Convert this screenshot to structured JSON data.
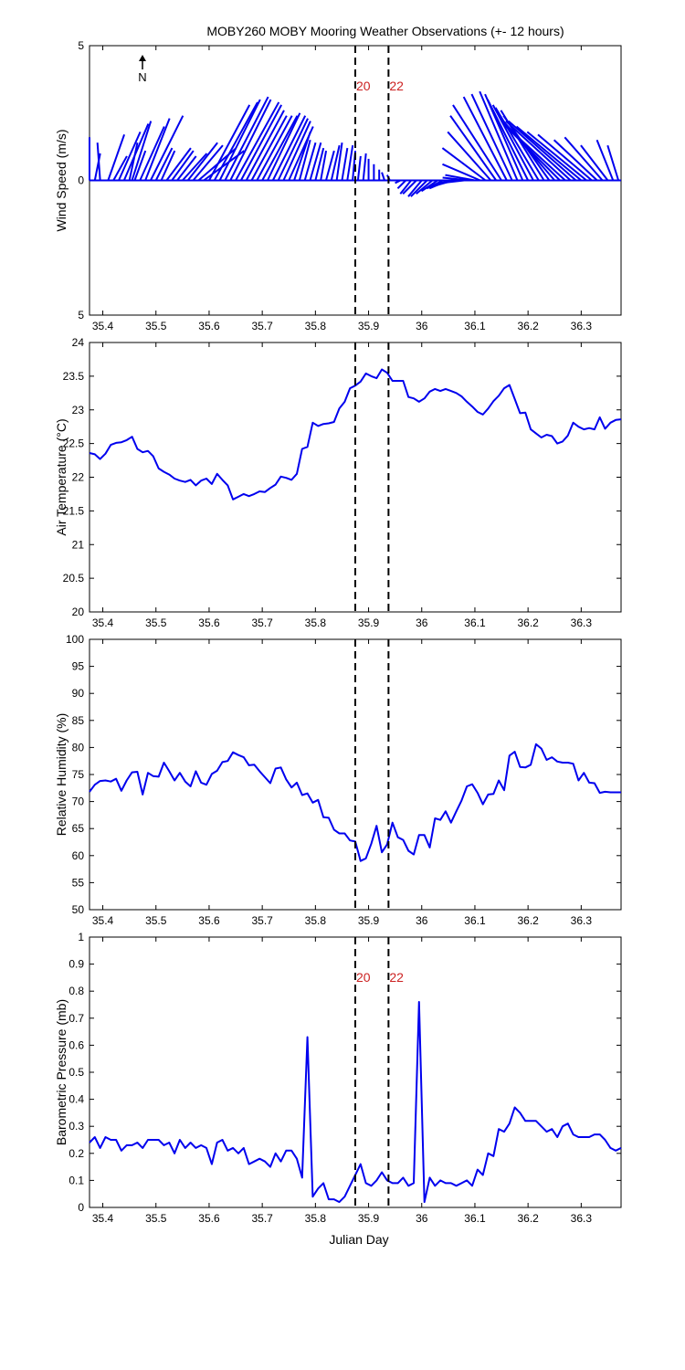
{
  "title": "MOBY260 MOBY Mooring Weather Observations (+- 12 hours)",
  "colors": {
    "series": "#0000ee",
    "marker_label": "#cc2222",
    "axis": "#000000"
  },
  "markers": [
    {
      "x": 35.875,
      "label": "20"
    },
    {
      "x": 35.9375,
      "label": "22"
    }
  ],
  "xaxis": {
    "label": "Julian Day",
    "range": [
      35.375,
      36.375
    ],
    "ticks": [
      35.4,
      35.5,
      35.6,
      35.7,
      35.8,
      35.9,
      36,
      36.1,
      36.2,
      36.3
    ],
    "tick_labels": [
      "35.4",
      "35.5",
      "35.6",
      "35.7",
      "35.8",
      "35.9",
      "36",
      "36.1",
      "36.2",
      "36.3"
    ]
  },
  "north_label": "N",
  "chart_data": [
    {
      "type": "stick",
      "ylabel": "Wind Speed (m/s)",
      "ylim": [
        -5,
        5
      ],
      "yticks": [
        -5,
        0,
        5
      ],
      "ytick_labels": [
        "5",
        "0",
        "5"
      ],
      "show_marker_labels": true,
      "x": [
        35.375,
        35.385,
        35.395,
        35.41,
        35.42,
        35.43,
        35.44,
        35.45,
        35.455,
        35.46,
        35.47,
        35.48,
        35.49,
        35.5,
        35.51,
        35.52,
        35.53,
        35.54,
        35.55,
        35.56,
        35.57,
        35.58,
        35.59,
        35.6,
        35.61,
        35.62,
        35.63,
        35.64,
        35.65,
        35.66,
        35.67,
        35.68,
        35.69,
        35.7,
        35.71,
        35.72,
        35.73,
        35.74,
        35.75,
        35.76,
        35.77,
        35.78,
        35.79,
        35.8,
        35.81,
        35.82,
        35.83,
        35.84,
        35.85,
        35.86,
        35.87,
        35.88,
        35.89,
        35.9,
        35.91,
        35.92,
        35.93,
        35.94,
        35.95,
        35.96,
        35.97,
        35.98,
        35.99,
        36.0,
        36.01,
        36.02,
        36.03,
        36.04,
        36.05,
        36.06,
        36.07,
        36.08,
        36.09,
        36.1,
        36.11,
        36.12,
        36.13,
        36.14,
        36.15,
        36.16,
        36.17,
        36.18,
        36.19,
        36.2,
        36.21,
        36.22,
        36.23,
        36.24,
        36.25,
        36.26,
        36.27,
        36.28,
        36.29,
        36.3,
        36.31,
        36.32,
        36.33,
        36.34,
        36.35,
        36.36,
        36.37
      ],
      "u": [
        0.0,
        0.2,
        -0.1,
        0.6,
        0.5,
        0.8,
        0.9,
        0.3,
        0.7,
        0.4,
        0.9,
        0.9,
        1.2,
        0.6,
        0.5,
        0.9,
        0.8,
        0.7,
        0.9,
        1.1,
        1.1,
        1.4,
        1.5,
        1.5,
        1.6,
        1.5,
        1.6,
        1.5,
        1.6,
        1.5,
        1.4,
        1.3,
        1.3,
        1.3,
        1.2,
        1.2,
        1.1,
        1.0,
        0.9,
        0.6,
        0.4,
        0.4,
        0.4,
        0.3,
        0.2,
        0.3,
        0.3,
        0.2,
        0.2,
        0.2,
        0.1,
        0.1,
        0.1,
        0.0,
        0.0,
        0.0,
        -0.1,
        -0.1,
        -0.15,
        -0.2,
        -0.3,
        -0.4,
        -0.5,
        -0.5,
        -0.6,
        -0.6,
        -0.6,
        -0.6,
        -0.7,
        -0.7,
        -0.8,
        -0.9,
        -1.0,
        -1.1,
        -1.4,
        -1.6,
        -1.6,
        -1.7,
        -1.8,
        -1.6,
        -1.5,
        -1.4,
        -1.4,
        -1.5,
        -1.5,
        -1.6,
        -1.6,
        -1.7,
        -1.9,
        -2.0,
        -2.3,
        -2.4,
        -2.5,
        -2.4,
        -2.2,
        -2.0,
        -1.6,
        -1.4,
        -1.0,
        -0.6,
        -0.4
      ],
      "v": [
        1.6,
        1.0,
        1.4,
        1.7,
        0.9,
        1.8,
        2.1,
        1.4,
        2.2,
        1.1,
        2.0,
        2.3,
        2.4,
        1.2,
        1.1,
        1.2,
        1.1,
        0.9,
        1.0,
        1.4,
        1.3,
        1.2,
        1.1,
        2.8,
        2.9,
        3.0,
        3.1,
        3.0,
        2.9,
        2.8,
        2.6,
        2.4,
        2.4,
        2.4,
        2.5,
        2.4,
        2.3,
        2.2,
        2.0,
        1.8,
        1.5,
        1.4,
        1.4,
        1.2,
        1.1,
        1.1,
        1.3,
        1.4,
        1.2,
        1.3,
        1.1,
        0.9,
        1.0,
        0.8,
        0.6,
        0.4,
        0.3,
        0.2,
        0.0,
        -0.1,
        -0.3,
        -0.5,
        -0.5,
        -0.6,
        -0.6,
        -0.5,
        -0.4,
        -0.3,
        -0.3,
        -0.2,
        -0.1,
        -0.1,
        0.1,
        0.2,
        0.6,
        1.2,
        1.8,
        2.4,
        2.8,
        3.1,
        3.2,
        3.3,
        3.2,
        3.0,
        2.8,
        2.7,
        2.6,
        2.4,
        2.2,
        2.0,
        2.1,
        2.2,
        2.2,
        2.0,
        1.8,
        1.7,
        1.5,
        1.6,
        1.3,
        1.5,
        1.3
      ]
    },
    {
      "type": "line",
      "ylabel": "Air Temperature (°C)",
      "ylim": [
        20,
        24
      ],
      "yticks": [
        20,
        20.5,
        21,
        21.5,
        22,
        22.5,
        23,
        23.5,
        24
      ],
      "ytick_labels": [
        "20",
        "20.5",
        "21",
        "21.5",
        "22",
        "22.5",
        "23",
        "23.5",
        "24"
      ],
      "show_marker_labels": false,
      "x": [
        35.375,
        35.385,
        35.395,
        35.405,
        35.415,
        35.425,
        35.435,
        35.445,
        35.455,
        35.465,
        35.475,
        35.485,
        35.495,
        35.505,
        35.515,
        35.525,
        35.535,
        35.545,
        35.555,
        35.565,
        35.575,
        35.585,
        35.595,
        35.605,
        35.615,
        35.625,
        35.635,
        35.645,
        35.655,
        35.665,
        35.675,
        35.685,
        35.695,
        35.705,
        35.715,
        35.725,
        35.735,
        35.745,
        35.755,
        35.765,
        35.775,
        35.785,
        35.795,
        35.805,
        35.815,
        35.825,
        35.835,
        35.845,
        35.855,
        35.865,
        35.875,
        35.885,
        35.895,
        35.905,
        35.915,
        35.925,
        35.935,
        35.945,
        35.955,
        35.965,
        35.975,
        35.985,
        35.995,
        36.005,
        36.015,
        36.025,
        36.035,
        36.045,
        36.055,
        36.065,
        36.075,
        36.085,
        36.095,
        36.105,
        36.115,
        36.125,
        36.135,
        36.145,
        36.155,
        36.165,
        36.175,
        36.185,
        36.195,
        36.205,
        36.215,
        36.225,
        36.235,
        36.245,
        36.255,
        36.265,
        36.275,
        36.285,
        36.295,
        36.305,
        36.315,
        36.325,
        36.335,
        36.345,
        36.355,
        36.365,
        36.375
      ],
      "y": [
        22.36,
        22.34,
        22.27,
        22.35,
        22.48,
        22.51,
        22.52,
        22.55,
        22.6,
        22.42,
        22.37,
        22.39,
        22.31,
        22.13,
        22.08,
        22.04,
        21.98,
        21.95,
        21.93,
        21.96,
        21.88,
        21.95,
        21.98,
        21.9,
        22.05,
        21.96,
        21.88,
        21.67,
        21.71,
        21.75,
        21.72,
        21.75,
        21.79,
        21.78,
        21.84,
        21.89,
        22.01,
        21.99,
        21.96,
        22.05,
        22.42,
        22.45,
        22.81,
        22.76,
        22.79,
        22.8,
        22.82,
        23.02,
        23.12,
        23.32,
        23.36,
        23.42,
        23.54,
        23.5,
        23.47,
        23.6,
        23.55,
        23.43,
        23.43,
        23.43,
        23.19,
        23.17,
        23.12,
        23.17,
        23.27,
        23.31,
        23.28,
        23.31,
        23.28,
        23.25,
        23.2,
        23.12,
        23.05,
        22.97,
        22.93,
        23.02,
        23.13,
        23.21,
        23.32,
        23.37,
        23.16,
        22.95,
        22.96,
        22.71,
        22.65,
        22.59,
        22.63,
        22.61,
        22.5,
        22.53,
        22.62,
        22.81,
        22.75,
        22.71,
        22.73,
        22.71,
        22.89,
        22.72,
        22.81,
        22.85,
        22.86
      ]
    },
    {
      "type": "line",
      "ylabel": "Relative Humidity (%)",
      "ylim": [
        50,
        100
      ],
      "yticks": [
        50,
        55,
        60,
        65,
        70,
        75,
        80,
        85,
        90,
        95,
        100
      ],
      "ytick_labels": [
        "50",
        "55",
        "60",
        "65",
        "70",
        "75",
        "80",
        "85",
        "90",
        "95",
        "100"
      ],
      "show_marker_labels": false,
      "x": [
        35.375,
        35.385,
        35.395,
        35.405,
        35.415,
        35.425,
        35.435,
        35.445,
        35.455,
        35.465,
        35.475,
        35.485,
        35.495,
        35.505,
        35.515,
        35.525,
        35.535,
        35.545,
        35.555,
        35.565,
        35.575,
        35.585,
        35.595,
        35.605,
        35.615,
        35.625,
        35.635,
        35.645,
        35.655,
        35.665,
        35.675,
        35.685,
        35.695,
        35.705,
        35.715,
        35.725,
        35.735,
        35.745,
        35.755,
        35.765,
        35.775,
        35.785,
        35.795,
        35.805,
        35.815,
        35.825,
        35.835,
        35.845,
        35.855,
        35.865,
        35.875,
        35.885,
        35.895,
        35.905,
        35.915,
        35.925,
        35.935,
        35.945,
        35.955,
        35.965,
        35.975,
        35.985,
        35.995,
        36.005,
        36.015,
        36.025,
        36.035,
        36.045,
        36.055,
        36.065,
        36.075,
        36.085,
        36.095,
        36.105,
        36.115,
        36.125,
        36.135,
        36.145,
        36.155,
        36.165,
        36.175,
        36.185,
        36.195,
        36.205,
        36.215,
        36.225,
        36.235,
        36.245,
        36.255,
        36.265,
        36.275,
        36.285,
        36.295,
        36.305,
        36.315,
        36.325,
        36.335,
        36.345,
        36.355,
        36.365,
        36.375
      ],
      "y": [
        71.8,
        73.1,
        73.8,
        73.9,
        73.7,
        74.2,
        72.0,
        73.9,
        75.4,
        75.5,
        71.3,
        75.3,
        74.7,
        74.6,
        77.2,
        75.6,
        73.9,
        75.3,
        73.7,
        72.8,
        75.6,
        73.5,
        73.1,
        75.1,
        75.7,
        77.3,
        77.5,
        79.1,
        78.6,
        78.2,
        76.7,
        76.8,
        75.6,
        74.5,
        73.4,
        76.1,
        76.3,
        74.1,
        72.6,
        73.5,
        71.2,
        71.5,
        69.8,
        70.3,
        67.1,
        67.0,
        64.8,
        64.1,
        64.1,
        62.8,
        62.6,
        59.0,
        59.5,
        62.2,
        65.5,
        60.6,
        62.1,
        66.1,
        63.4,
        62.9,
        60.9,
        60.2,
        63.8,
        63.8,
        61.5,
        66.9,
        66.6,
        68.2,
        66.1,
        68.2,
        70.2,
        72.8,
        73.2,
        71.6,
        69.5,
        71.3,
        71.4,
        73.9,
        72.1,
        78.5,
        79.2,
        76.4,
        76.3,
        76.8,
        80.6,
        79.8,
        77.7,
        78.2,
        77.4,
        77.2,
        77.2,
        77.0,
        73.9,
        75.3,
        73.5,
        73.4,
        71.6,
        71.8,
        71.7,
        71.7,
        71.7
      ]
    },
    {
      "type": "line",
      "ylabel": "Barometric Pressure (mb)",
      "ylim": [
        0,
        1
      ],
      "yticks": [
        0,
        0.1,
        0.2,
        0.3,
        0.4,
        0.5,
        0.6,
        0.7,
        0.8,
        0.9,
        1
      ],
      "ytick_labels": [
        "0",
        "0.1",
        "0.2",
        "0.3",
        "0.4",
        "0.5",
        "0.6",
        "0.7",
        "0.8",
        "0.9",
        "1"
      ],
      "show_marker_labels": true,
      "x": [
        35.375,
        35.385,
        35.395,
        35.405,
        35.415,
        35.425,
        35.435,
        35.445,
        35.455,
        35.465,
        35.475,
        35.485,
        35.495,
        35.505,
        35.515,
        35.525,
        35.535,
        35.545,
        35.555,
        35.565,
        35.575,
        35.585,
        35.595,
        35.605,
        35.615,
        35.625,
        35.635,
        35.645,
        35.655,
        35.665,
        35.675,
        35.685,
        35.695,
        35.705,
        35.715,
        35.725,
        35.735,
        35.745,
        35.755,
        35.765,
        35.775,
        35.785,
        35.795,
        35.805,
        35.815,
        35.825,
        35.835,
        35.845,
        35.855,
        35.865,
        35.875,
        35.885,
        35.895,
        35.905,
        35.915,
        35.925,
        35.935,
        35.945,
        35.955,
        35.965,
        35.975,
        35.985,
        35.995,
        36.005,
        36.015,
        36.025,
        36.035,
        36.045,
        36.055,
        36.065,
        36.075,
        36.085,
        36.095,
        36.105,
        36.115,
        36.125,
        36.135,
        36.145,
        36.155,
        36.165,
        36.175,
        36.185,
        36.195,
        36.205,
        36.215,
        36.225,
        36.235,
        36.245,
        36.255,
        36.265,
        36.275,
        36.285,
        36.295,
        36.305,
        36.315,
        36.325,
        36.335,
        36.345,
        36.355,
        36.365,
        36.375
      ],
      "y": [
        0.24,
        0.26,
        0.22,
        0.26,
        0.25,
        0.25,
        0.21,
        0.23,
        0.23,
        0.24,
        0.22,
        0.25,
        0.25,
        0.25,
        0.23,
        0.24,
        0.2,
        0.25,
        0.22,
        0.24,
        0.22,
        0.23,
        0.22,
        0.16,
        0.24,
        0.25,
        0.21,
        0.22,
        0.2,
        0.22,
        0.16,
        0.17,
        0.18,
        0.17,
        0.15,
        0.2,
        0.17,
        0.21,
        0.21,
        0.18,
        0.11,
        0.63,
        0.04,
        0.07,
        0.09,
        0.03,
        0.03,
        0.02,
        0.04,
        0.08,
        0.12,
        0.16,
        0.09,
        0.08,
        0.1,
        0.13,
        0.1,
        0.09,
        0.09,
        0.11,
        0.08,
        0.09,
        0.76,
        0.02,
        0.11,
        0.08,
        0.1,
        0.09,
        0.09,
        0.08,
        0.09,
        0.1,
        0.08,
        0.14,
        0.12,
        0.2,
        0.19,
        0.29,
        0.28,
        0.31,
        0.37,
        0.35,
        0.32,
        0.32,
        0.32,
        0.3,
        0.28,
        0.29,
        0.26,
        0.3,
        0.31,
        0.27,
        0.26,
        0.26,
        0.26,
        0.27,
        0.27,
        0.25,
        0.22,
        0.21,
        0.22
      ]
    }
  ]
}
